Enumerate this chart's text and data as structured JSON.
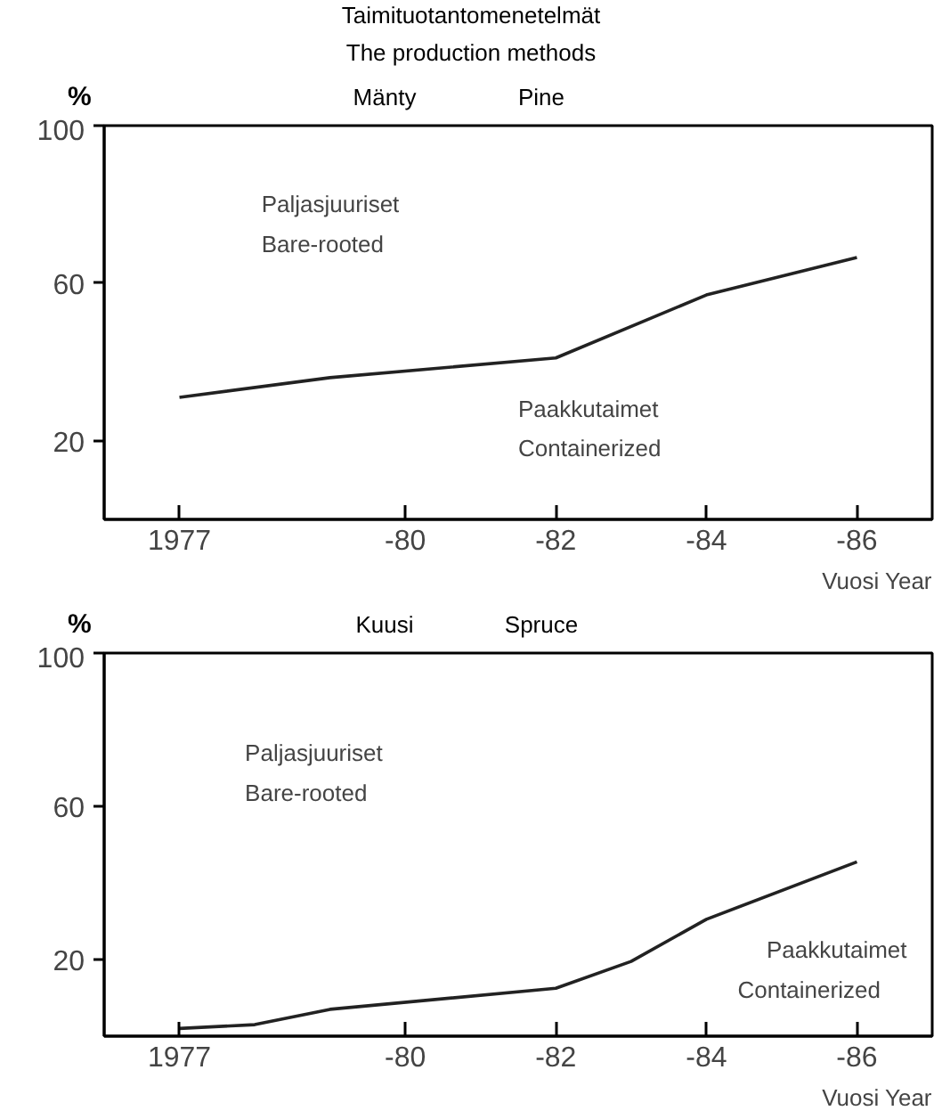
{
  "chart_data": [
    {
      "type": "line",
      "title": "Taimituotantomenetelmät",
      "subtitle": "The production methods",
      "xlabel": "Vuosi Year",
      "ylabel": "%",
      "categories": [
        "1977",
        null,
        null,
        "-80",
        null,
        "-82",
        null,
        "-84",
        null,
        "-86"
      ],
      "series": [
        {
          "color": "#222222",
          "values": [
            31,
            null,
            36,
            null,
            null,
            41,
            null,
            57,
            null,
            66.5
          ]
        }
      ],
      "ylim": [
        0,
        100
      ],
      "yticks": [
        20,
        60,
        100
      ],
      "grid": false,
      "annotations": [
        "Mänty",
        "Pine",
        "Paljasjuuriset",
        "Bare-rooted",
        "Paakkutaimet",
        "Containerized"
      ]
    },
    {
      "type": "line",
      "xlabel": "Vuosi Year",
      "ylabel": "%",
      "categories": [
        "1977",
        null,
        null,
        "-80",
        null,
        "-82",
        null,
        "-84",
        null,
        "-86"
      ],
      "series": [
        {
          "color": "#222222",
          "values": [
            2,
            3,
            7,
            null,
            null,
            12.5,
            19.5,
            30.5,
            null,
            45.5
          ]
        }
      ],
      "ylim": [
        0,
        100
      ],
      "yticks": [
        20,
        60,
        100
      ],
      "grid": false,
      "annotations": [
        "Kuusi",
        "Spruce",
        "Paljasjuuriset",
        "Bare-rooted",
        "Paakkutaimet",
        "Containerized"
      ]
    }
  ]
}
